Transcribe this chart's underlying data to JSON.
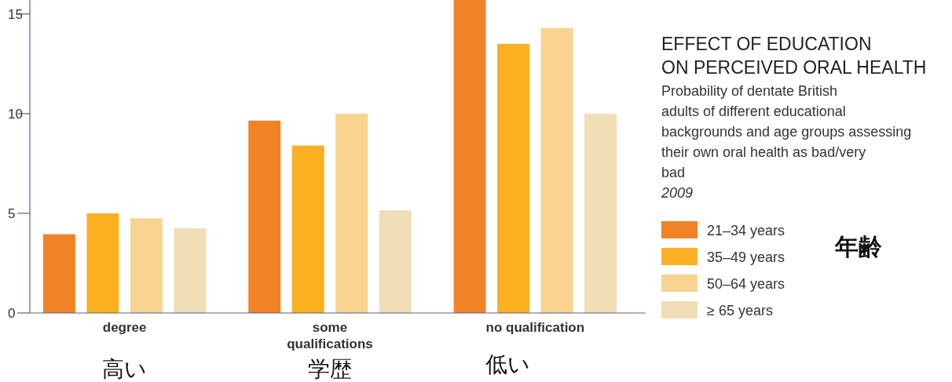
{
  "chart_data": {
    "type": "bar",
    "title": "EFFECT OF EDUCATION ON PERCEIVED ORAL HEALTH",
    "subtitle": "Probability of dentate British adults of different educational backgrounds and age groups assessing their own oral health as bad/very bad",
    "annotations": [
      "2009",
      "高い",
      "学歴",
      "低い",
      "年齢"
    ],
    "categories": [
      "degree",
      "some qualifications",
      "no qualification"
    ],
    "series": [
      {
        "name": "21–34 years",
        "color": "#f28226",
        "values": [
          3.95,
          9.65,
          15.7
        ]
      },
      {
        "name": "35–49 years",
        "color": "#fbb022",
        "values": [
          5.0,
          8.4,
          13.5
        ]
      },
      {
        "name": "50–64 years",
        "color": "#f8d490",
        "values": [
          4.75,
          10.0,
          14.3
        ]
      },
      {
        "name": "≥ 65 years",
        "color": "#f0deb6",
        "values": [
          4.25,
          5.15,
          10.0
        ]
      }
    ],
    "ylim": [
      0,
      15.7
    ],
    "yticks": [
      0,
      5,
      10,
      15
    ],
    "grid": false,
    "legend": "right"
  }
}
